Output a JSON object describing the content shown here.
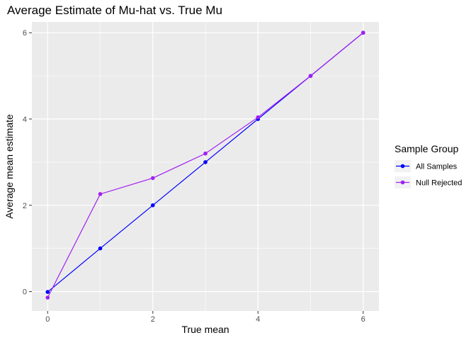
{
  "chart_data": {
    "type": "line",
    "title": "Average Estimate of Mu-hat vs. True Mu",
    "xlabel": "True mean",
    "ylabel": "Average mean estimate",
    "xlim": [
      -0.3,
      6.3
    ],
    "ylim": [
      -0.45,
      6.25
    ],
    "xticks": [
      0,
      2,
      4,
      6
    ],
    "yticks": [
      0,
      2,
      4,
      6
    ],
    "grid": true,
    "legend_title": "Sample Group",
    "legend_position": "right",
    "series": [
      {
        "name": "All Samples",
        "color": "#0000FF",
        "x": [
          0,
          1,
          2,
          3,
          4,
          5,
          6
        ],
        "y": [
          -0.01,
          1.0,
          2.0,
          3.0,
          4.0,
          5.0,
          6.0
        ]
      },
      {
        "name": "Null Rejected",
        "color": "#A020F0",
        "x": [
          0,
          1,
          2,
          3,
          4,
          5,
          6
        ],
        "y": [
          -0.14,
          2.26,
          2.63,
          3.2,
          4.04,
          5.0,
          6.0
        ]
      }
    ]
  }
}
